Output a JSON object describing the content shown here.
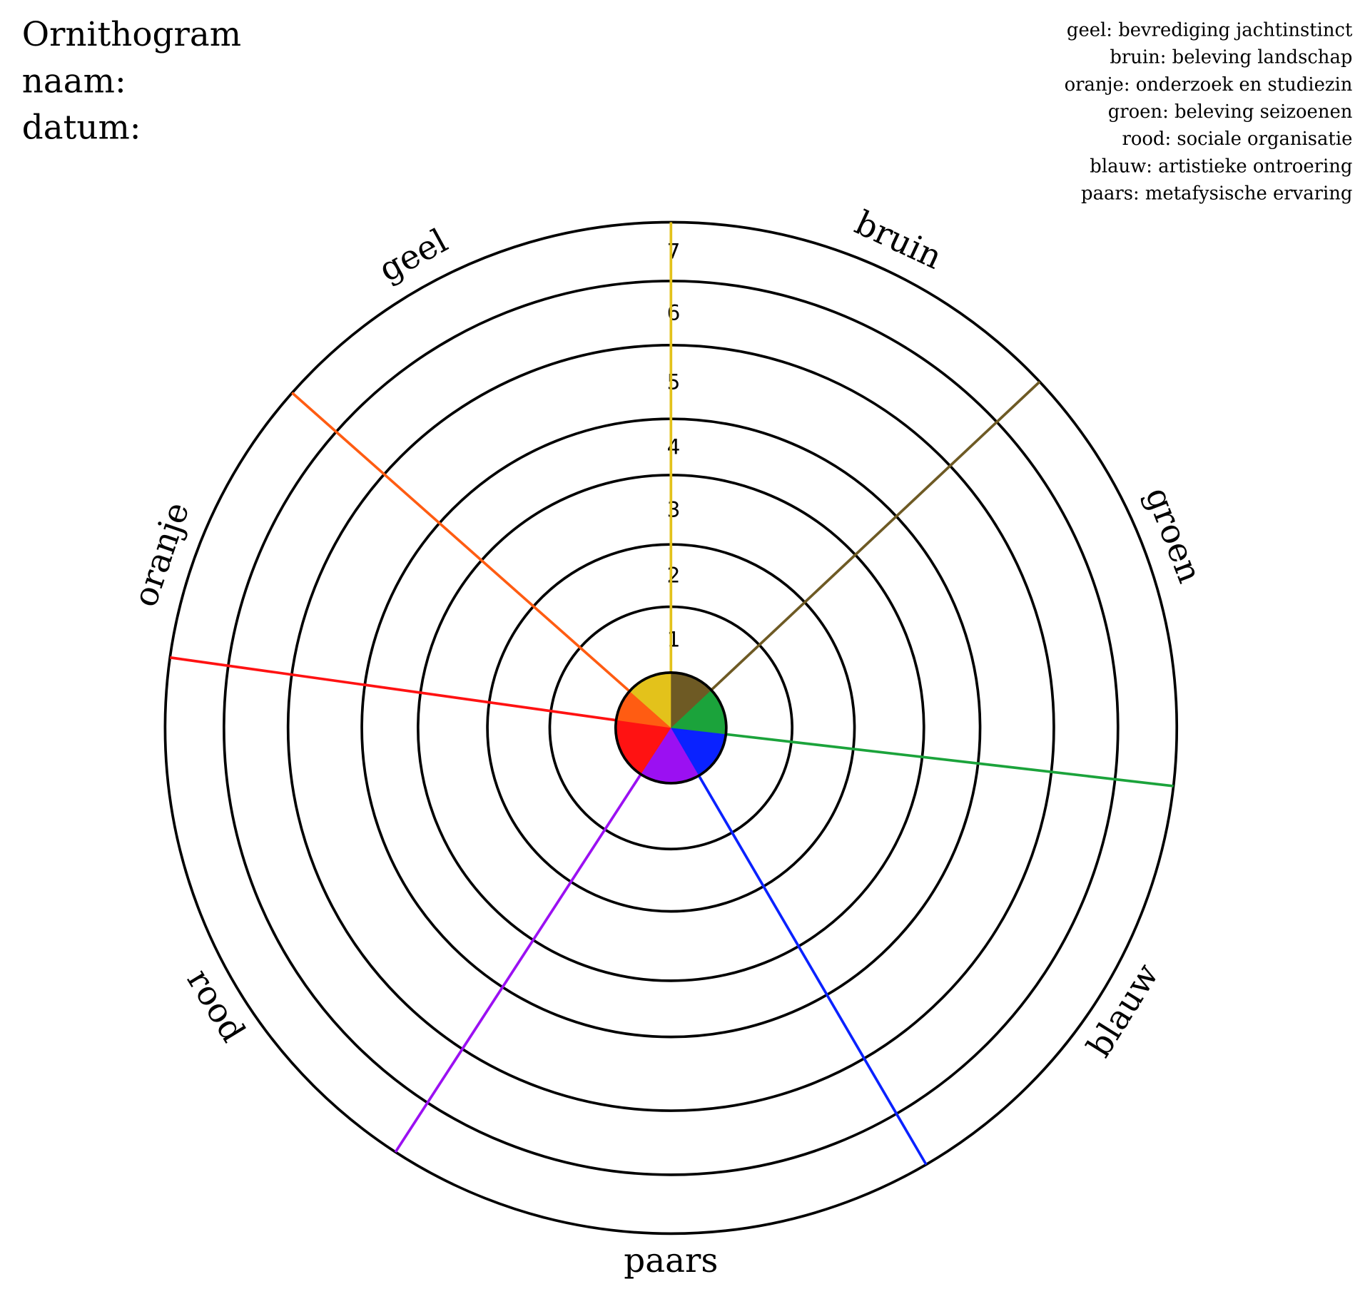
{
  "header": {
    "title": "Ornithogram",
    "fields": [
      "naam:",
      "datum:"
    ]
  },
  "legend": [
    "geel: bevrediging jachtinstinct",
    "bruin: beleving landschap",
    "oranje: onderzoek en studiezin",
    "groen: beleving seizoenen",
    "rood: sociale organisatie",
    "blauw: artistieke ontroering",
    "paars: metafysische ervaring"
  ],
  "axes": [
    {
      "label": "geel",
      "color": "#e3c21b"
    },
    {
      "label": "bruin",
      "color": "#6e5a24"
    },
    {
      "label": "groen",
      "color": "#1ba33b"
    },
    {
      "label": "blauw",
      "color": "#0a22ff"
    },
    {
      "label": "paars",
      "color": "#9b10f2"
    },
    {
      "label": "rood",
      "color": "#ff1212"
    },
    {
      "label": "oranje",
      "color": "#ff5c12"
    }
  ],
  "ring_labels": [
    1,
    2,
    3,
    4,
    5,
    6,
    7
  ]
}
